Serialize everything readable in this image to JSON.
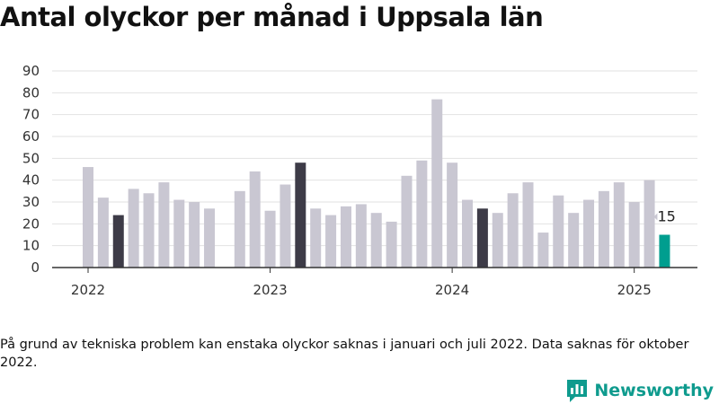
{
  "title": "Antal olyckor per månad i Uppsala län",
  "note": "På grund av tekniska problem kan enstaka olyckor saknas i januari och juli 2022. Data saknas för oktober 2022.",
  "brand": {
    "name": "Newsworthy",
    "icon": "bar-chart-logo-icon"
  },
  "colors": {
    "bar": "#c9c7d2",
    "highlight": "#3d3b47",
    "latest": "#009e8f",
    "grid": "#e2e2e2",
    "axis": "#333333",
    "brand": "#0f9b8e"
  },
  "chart_data": {
    "type": "bar",
    "title": "Antal olyckor per månad i Uppsala län",
    "xlabel": "",
    "ylabel": "",
    "ylim": [
      0,
      90
    ],
    "yticks": [
      0,
      10,
      20,
      30,
      40,
      50,
      60,
      70,
      80,
      90
    ],
    "xticks": [
      {
        "label": "2022",
        "index": 0
      },
      {
        "label": "2023",
        "index": 12
      },
      {
        "label": "2024",
        "index": 24
      },
      {
        "label": "2025",
        "index": 36
      }
    ],
    "grid": true,
    "categories": [
      "2022-01",
      "2022-02",
      "2022-03",
      "2022-04",
      "2022-05",
      "2022-06",
      "2022-07",
      "2022-08",
      "2022-09",
      "2022-10",
      "2022-11",
      "2022-12",
      "2023-01",
      "2023-02",
      "2023-03",
      "2023-04",
      "2023-05",
      "2023-06",
      "2023-07",
      "2023-08",
      "2023-09",
      "2023-10",
      "2023-11",
      "2023-12",
      "2024-01",
      "2024-02",
      "2024-03",
      "2024-04",
      "2024-05",
      "2024-06",
      "2024-07",
      "2024-08",
      "2024-09",
      "2024-10",
      "2024-11",
      "2024-12",
      "2025-01",
      "2025-02",
      "2025-03"
    ],
    "values": [
      46,
      32,
      24,
      36,
      34,
      39,
      31,
      30,
      27,
      null,
      35,
      44,
      26,
      38,
      48,
      27,
      24,
      28,
      29,
      25,
      21,
      42,
      49,
      77,
      48,
      31,
      27,
      25,
      34,
      39,
      16,
      33,
      25,
      31,
      35,
      39,
      30,
      40,
      15
    ],
    "highlight_indices": [
      2,
      14,
      26
    ],
    "latest_index": 38,
    "data_labels": [
      {
        "index": 38,
        "text": "15"
      }
    ]
  }
}
